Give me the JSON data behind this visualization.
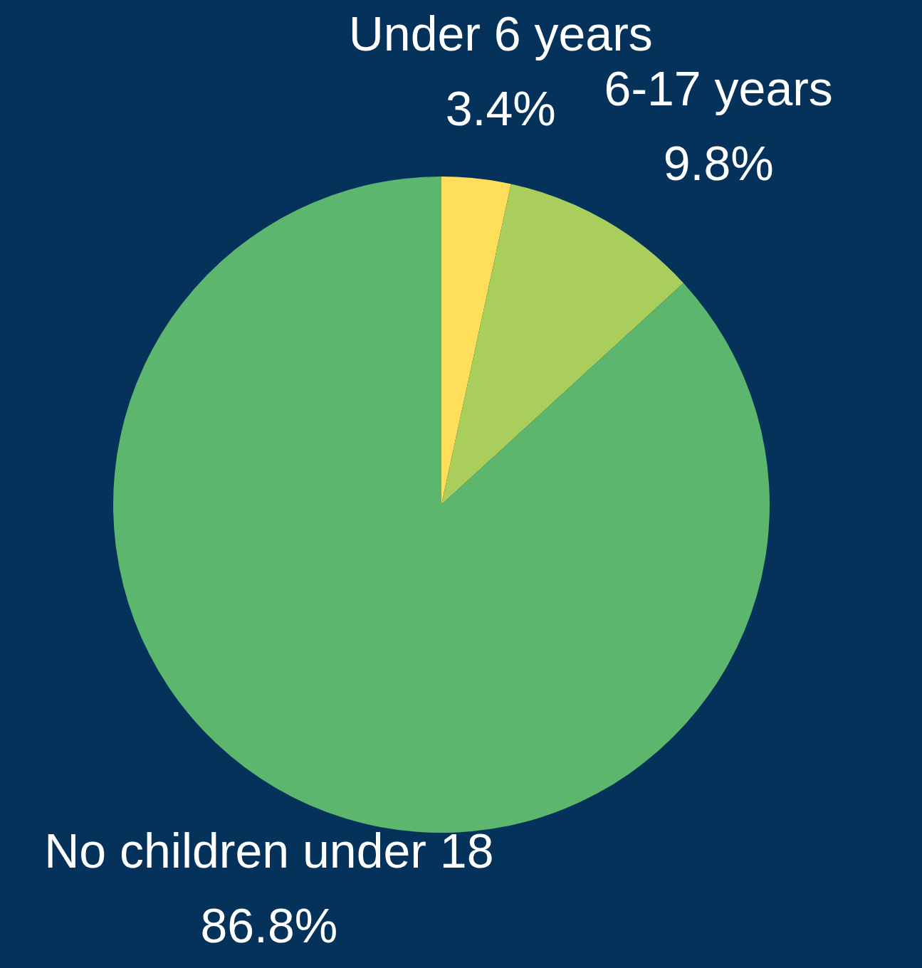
{
  "chart_data": {
    "type": "pie",
    "categories": [
      "Under 6 years",
      "6-17 years",
      "No children under 18"
    ],
    "values": [
      3.4,
      9.8,
      86.8
    ],
    "colors": [
      "#ffde59",
      "#a9ce5c",
      "#5db66d"
    ],
    "value_labels": [
      "3.4%",
      "9.8%",
      "86.8%"
    ]
  }
}
